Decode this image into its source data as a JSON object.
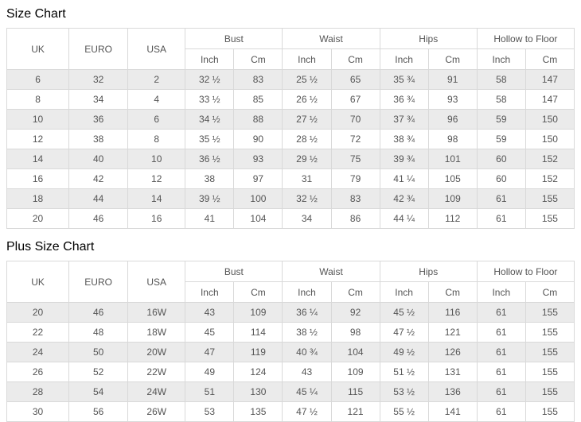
{
  "titles": {
    "size_chart": "Size Chart",
    "plus_size_chart": "Plus Size Chart"
  },
  "header": {
    "uk": "UK",
    "euro": "EURO",
    "usa": "USA",
    "bust": "Bust",
    "waist": "Waist",
    "hips": "Hips",
    "hollow_to_floor": "Hollow to Floor",
    "inch": "Inch",
    "cm": "Cm"
  },
  "size_chart": {
    "rows": [
      [
        "6",
        "32",
        "2",
        "32 ½",
        "83",
        "25 ½",
        "65",
        "35 ¾",
        "91",
        "58",
        "147"
      ],
      [
        "8",
        "34",
        "4",
        "33 ½",
        "85",
        "26 ½",
        "67",
        "36 ¾",
        "93",
        "58",
        "147"
      ],
      [
        "10",
        "36",
        "6",
        "34 ½",
        "88",
        "27 ½",
        "70",
        "37 ¾",
        "96",
        "59",
        "150"
      ],
      [
        "12",
        "38",
        "8",
        "35 ½",
        "90",
        "28 ½",
        "72",
        "38 ¾",
        "98",
        "59",
        "150"
      ],
      [
        "14",
        "40",
        "10",
        "36 ½",
        "93",
        "29 ½",
        "75",
        "39 ¾",
        "101",
        "60",
        "152"
      ],
      [
        "16",
        "42",
        "12",
        "38",
        "97",
        "31",
        "79",
        "41 ¼",
        "105",
        "60",
        "152"
      ],
      [
        "18",
        "44",
        "14",
        "39 ½",
        "100",
        "32 ½",
        "83",
        "42 ¾",
        "109",
        "61",
        "155"
      ],
      [
        "20",
        "46",
        "16",
        "41",
        "104",
        "34",
        "86",
        "44 ¼",
        "112",
        "61",
        "155"
      ]
    ]
  },
  "plus_size_chart": {
    "rows": [
      [
        "20",
        "46",
        "16W",
        "43",
        "109",
        "36 ¼",
        "92",
        "45 ½",
        "116",
        "61",
        "155"
      ],
      [
        "22",
        "48",
        "18W",
        "45",
        "114",
        "38 ½",
        "98",
        "47 ½",
        "121",
        "61",
        "155"
      ],
      [
        "24",
        "50",
        "20W",
        "47",
        "119",
        "40 ¾",
        "104",
        "49 ½",
        "126",
        "61",
        "155"
      ],
      [
        "26",
        "52",
        "22W",
        "49",
        "124",
        "43",
        "109",
        "51 ½",
        "131",
        "61",
        "155"
      ],
      [
        "28",
        "54",
        "24W",
        "51",
        "130",
        "45 ¼",
        "115",
        "53 ½",
        "136",
        "61",
        "155"
      ],
      [
        "30",
        "56",
        "26W",
        "53",
        "135",
        "47 ½",
        "121",
        "55 ½",
        "141",
        "61",
        "155"
      ]
    ]
  },
  "colors": {
    "stripe": "#ebebeb",
    "border": "#d9d9d9",
    "text": "#555555",
    "title": "#000000"
  }
}
